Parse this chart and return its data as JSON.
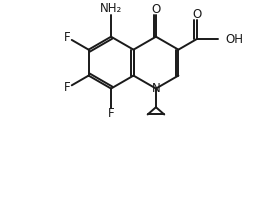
{
  "bg_color": "#ffffff",
  "line_color": "#1a1a1a",
  "line_width": 1.4,
  "font_size": 8.5,
  "fig_width": 2.67,
  "fig_height": 2.08,
  "dpi": 100,
  "BL": 1.0,
  "xlim": [
    0,
    9
  ],
  "ylim": [
    0,
    7.5
  ]
}
